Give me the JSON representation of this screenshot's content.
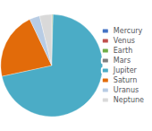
{
  "chart_data": {
    "type": "pie",
    "categories": [
      "Mercury",
      "Venus",
      "Earth",
      "Mars",
      "Jupiter",
      "Saturn",
      "Uranus",
      "Neptune"
    ],
    "values": [
      0.0553,
      0.815,
      1.0,
      0.107,
      317.8,
      95.2,
      14.5,
      17.1
    ],
    "colors": [
      "#4472c4",
      "#c0504d",
      "#70ad47",
      "#7f7f7f",
      "#4bacc6",
      "#e26b0a",
      "#b8cce4",
      "#d9d9d9"
    ],
    "legend": "right"
  }
}
